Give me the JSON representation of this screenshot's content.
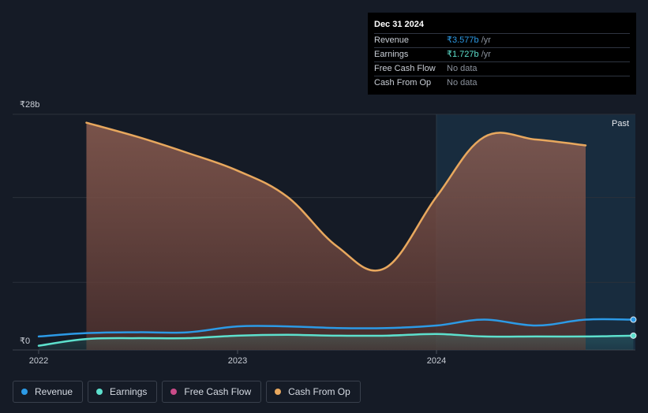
{
  "tooltip": {
    "date": "Dec 31 2024",
    "rows": [
      {
        "label": "Revenue",
        "value": "₹3.577b",
        "unit": " /yr"
      },
      {
        "label": "Earnings",
        "value": "₹1.727b",
        "unit": " /yr"
      },
      {
        "label": "Free Cash Flow",
        "value": "No data"
      },
      {
        "label": "Cash From Op",
        "value": "No data"
      }
    ]
  },
  "legend": [
    {
      "label": "Revenue",
      "color": "#2c9ae6"
    },
    {
      "label": "Earnings",
      "color": "#5de0cd"
    },
    {
      "label": "Free Cash Flow",
      "color": "#c94b88"
    },
    {
      "label": "Cash From Op",
      "color": "#e8a85e"
    }
  ],
  "chart_data": {
    "type": "area",
    "y_top_label": "₹28b",
    "y_zero_label": "₹0",
    "past_label": "Past",
    "x_ticks": [
      "2022",
      "2023",
      "2024"
    ],
    "x_range": [
      2022.0,
      2024.99
    ],
    "ylim": [
      0,
      28
    ],
    "forecast_start": 2024.0,
    "grid": true,
    "series": [
      {
        "name": "Cash From Op",
        "color": "#e8a85e",
        "fill": true,
        "x": [
          2022.24,
          2022.5,
          2022.75,
          2023.0,
          2023.25,
          2023.5,
          2023.74,
          2024.0,
          2024.24,
          2024.5,
          2024.75
        ],
        "y": [
          27.0,
          25.3,
          23.4,
          21.3,
          18.2,
          12.3,
          9.7,
          18.2,
          25.3,
          25.0,
          24.3
        ]
      },
      {
        "name": "Revenue",
        "color": "#2c9ae6",
        "fill": false,
        "x": [
          2022.0,
          2022.24,
          2022.5,
          2022.75,
          2023.0,
          2023.25,
          2023.5,
          2023.75,
          2024.0,
          2024.24,
          2024.5,
          2024.75,
          2024.99
        ],
        "y": [
          1.6,
          2.0,
          2.1,
          2.1,
          2.8,
          2.8,
          2.6,
          2.6,
          2.9,
          3.6,
          2.9,
          3.6,
          3.6
        ]
      },
      {
        "name": "Earnings",
        "color": "#5de0cd",
        "fill": true,
        "x": [
          2022.0,
          2022.24,
          2022.5,
          2022.75,
          2023.0,
          2023.25,
          2023.5,
          2023.75,
          2024.0,
          2024.24,
          2024.5,
          2024.75,
          2024.99
        ],
        "y": [
          0.5,
          1.3,
          1.4,
          1.4,
          1.7,
          1.8,
          1.7,
          1.7,
          1.9,
          1.6,
          1.6,
          1.6,
          1.7
        ]
      }
    ]
  }
}
